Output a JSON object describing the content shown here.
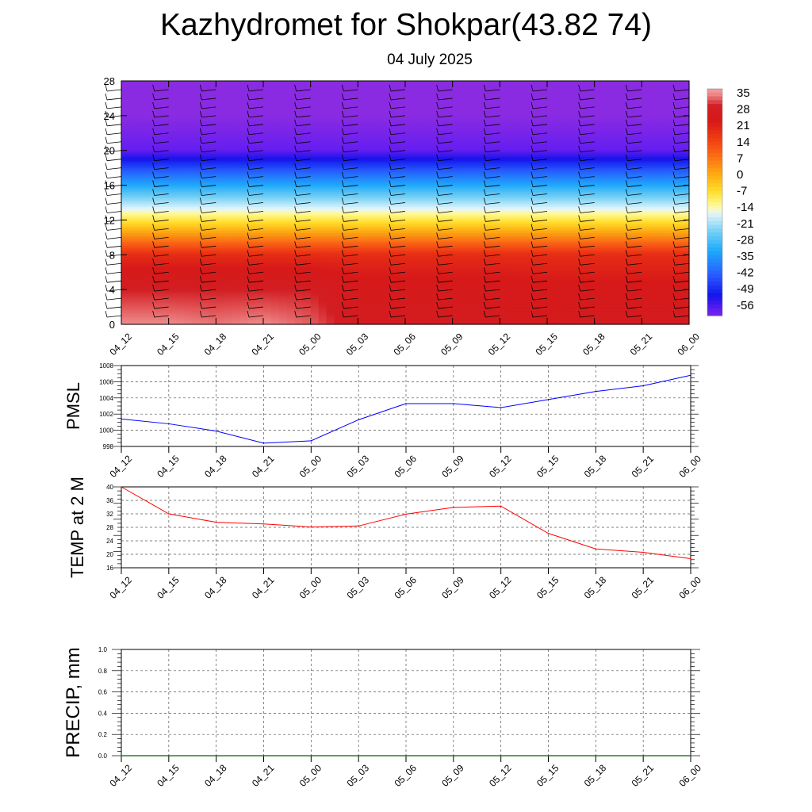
{
  "title": "Kazhydromet for Shokpar(43.82 74)",
  "subtitle": "04 July 2025",
  "colorbar": {
    "labels": [
      "35",
      "28",
      "21",
      "14",
      "7",
      "0",
      "-7",
      "-14",
      "-21",
      "-28",
      "-35",
      "-42",
      "-49",
      "-56"
    ]
  },
  "chart_data": [
    {
      "type": "heatmap",
      "title": "",
      "ylim": [
        0,
        28
      ],
      "yticks": [
        "0",
        "4",
        "8",
        "12",
        "16",
        "20",
        "24",
        "28"
      ],
      "categories": [
        "04_12",
        "04_15",
        "04_18",
        "04_21",
        "05_00",
        "05_03",
        "05_06",
        "05_09",
        "05_12",
        "05_15",
        "05_18",
        "05_21",
        "06_00"
      ],
      "levels": [
        0,
        4,
        8,
        12,
        16,
        20,
        24,
        28
      ],
      "values": [
        [
          33,
          33,
          32,
          33,
          31,
          26,
          26,
          26,
          26,
          24,
          26,
          26,
          26
        ],
        [
          28,
          28,
          28,
          28,
          28,
          24,
          24,
          24,
          24,
          23,
          23,
          23,
          23
        ],
        [
          18,
          18,
          18,
          18,
          18,
          18,
          18,
          18,
          18,
          18,
          18,
          18,
          18
        ],
        [
          -8,
          -8,
          -8,
          -8,
          -8,
          -8,
          -8,
          -8,
          -8,
          -8,
          -8,
          -8,
          -8
        ],
        [
          -30,
          -30,
          -30,
          -30,
          -30,
          -30,
          -30,
          -30,
          -30,
          -30,
          -30,
          -30,
          -30
        ],
        [
          -54,
          -54,
          -54,
          -54,
          -54,
          -54,
          -54,
          -54,
          -54,
          -54,
          -54,
          -54,
          -54
        ],
        [
          -60,
          -60,
          -60,
          -60,
          -60,
          -60,
          -60,
          -60,
          -60,
          -60,
          -60,
          -60,
          -60
        ],
        [
          -60,
          -60,
          -60,
          -60,
          -60,
          -60,
          -60,
          -60,
          -60,
          -60,
          -60,
          -60,
          -60
        ]
      ],
      "colorbar_range": [
        -56,
        35
      ]
    },
    {
      "type": "line",
      "ylabel": "PMSL",
      "ylim": [
        998,
        1008
      ],
      "yticks": [
        "998",
        "1000",
        "1002",
        "1004",
        "1006",
        "1008"
      ],
      "categories": [
        "04_12",
        "04_15",
        "04_18",
        "04_21",
        "05_00",
        "05_03",
        "05_06",
        "05_09",
        "05_12",
        "05_15",
        "05_18",
        "05_21",
        "06_00"
      ],
      "values": [
        1001.4,
        1000.8,
        999.9,
        998.4,
        998.7,
        1001.3,
        1003.3,
        1003.3,
        1002.8,
        1003.8,
        1004.8,
        1005.5,
        1006.8
      ],
      "color": "#0000ff"
    },
    {
      "type": "line",
      "ylabel": "TEMP at 2 M",
      "ylim": [
        16,
        40
      ],
      "yticks": [
        "16",
        "20",
        "24",
        "28",
        "32",
        "36",
        "40"
      ],
      "categories": [
        "04_12",
        "04_15",
        "04_18",
        "04_21",
        "05_00",
        "05_03",
        "05_06",
        "05_09",
        "05_12",
        "05_15",
        "05_18",
        "05_21",
        "06_00"
      ],
      "values": [
        40,
        32,
        29.5,
        29,
        28.1,
        28.4,
        31.9,
        33.9,
        34.3,
        26.2,
        21.6,
        20.6,
        18.7
      ],
      "color": "#ff0000"
    },
    {
      "type": "line",
      "ylabel": "PRECIP, mm",
      "ylim": [
        0,
        1
      ],
      "yticks": [
        "0.0",
        "0.2",
        "0.4",
        "0.6",
        "0.8",
        "1.0"
      ],
      "categories": [
        "04_12",
        "04_15",
        "04_18",
        "04_21",
        "05_00",
        "05_03",
        "05_06",
        "05_09",
        "05_12",
        "05_15",
        "05_18",
        "05_21",
        "06_00"
      ],
      "values": [
        0,
        0,
        0,
        0,
        0,
        0,
        0,
        0,
        0,
        0,
        0,
        0,
        0
      ],
      "color": "#006400"
    }
  ]
}
